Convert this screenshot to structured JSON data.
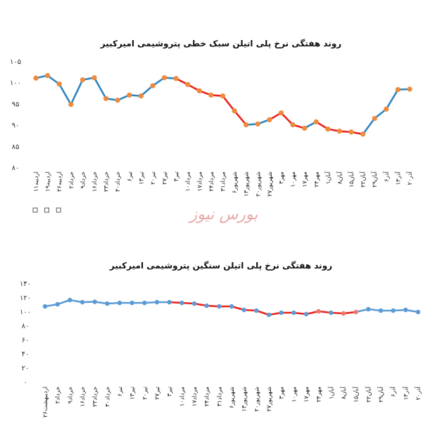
{
  "watermark": "بورس نیوز",
  "chart_data": [
    {
      "type": "line",
      "title": "روند هفتگی نرخ پلی اتیلن سبک خطی پتروشیمی امیرکبیر",
      "ylim": [
        80,
        105
      ],
      "yticks": [
        80,
        85,
        90,
        95,
        100,
        105
      ],
      "grid": false,
      "categories": [
        "۱۱اردیبه",
        "۱۹اردیبه",
        "۲۶اردیبه",
        "۲خرداد",
        "۹خرداد",
        "۱۶خرداد",
        "۲۳خرداد",
        "۳۰خرداد",
        "۶تیر",
        "۱۳تیر",
        "۲۰تیر",
        "۲۷تیر",
        "۳تیر",
        "۱۰مرداد",
        "۱۷مرداد",
        "۲۴مرداد",
        "۳۱مرداد",
        "۶شهریور",
        "۱۳شهریور",
        "۲۰شهریور",
        "۲۷شهریور",
        "۳مهر",
        "۱۰مهر",
        "۱۷مهر",
        "۲۴مهر",
        "۱آبان",
        "۸آبان",
        "۱۵آبان",
        "۲۲آبان",
        "۲۹آبان",
        "۶آذر",
        "۱۳آذر",
        "۲۰آذر"
      ],
      "values": [
        101.0,
        101.6,
        99.6,
        94.8,
        100.6,
        101.1,
        96.2,
        95.8,
        97.0,
        96.8,
        99.2,
        101.1,
        100.9,
        99.5,
        98.0,
        97.0,
        96.8,
        93.3,
        90.0,
        90.2,
        91.2,
        92.8,
        90.0,
        89.2,
        90.7,
        89.0,
        88.5,
        88.3,
        87.8,
        91.5,
        93.7,
        98.3,
        98.4
      ],
      "segment_colors": [
        "#2e86c1",
        "#2e86c1",
        "#2e86c1",
        "#2e86c1",
        "#2e86c1",
        "#2e86c1",
        "#2e86c1",
        "#2e86c1",
        "#2e86c1",
        "#2e86c1",
        "#2e86c1",
        "#2e86c1",
        "#e8231c",
        "#e8231c",
        "#e8231c",
        "#e8231c",
        "#e8231c",
        "#e8231c",
        "#2e86c1",
        "#2e86c1",
        "#e8231c",
        "#e8231c",
        "#e8231c",
        "#2e86c1",
        "#e8231c",
        "#e8231c",
        "#e8231c",
        "#e8231c",
        "#2e86c1",
        "#2e86c1",
        "#2e86c1",
        "#2e86c1"
      ],
      "marker_color": "#ee8a3c",
      "legend_boxes_first_labels": 3
    },
    {
      "type": "line",
      "title": "روند هفتگی نرخ پلی اتیلن سنگین پتروشیمی امیرکبیر",
      "ylim": [
        0,
        140
      ],
      "yticks": [
        0,
        20,
        40,
        60,
        80,
        100,
        120,
        140
      ],
      "grid": false,
      "categories": [
        "۲۶اردیبهشت",
        "۲خرداد",
        "۹خرداد",
        "۱۶خرداد",
        "۲۳خرداد",
        "۳۰خرداد",
        "۶تیر",
        "۱۳تیر",
        "۲۰تیر",
        "۲۷تیر",
        "۳تیر",
        "۱۰مرداد",
        "۱۷مرداد",
        "۲۴مرداد",
        "۳۱مرداد",
        "۶شهریور",
        "۱۳شهریور",
        "۲۰شهریور",
        "۲۷شهریور",
        "۳مهر",
        "۱۰مهر",
        "۱۷مهر",
        "۲۴مهر",
        "۱آبان",
        "۸آبان",
        "۱۵آبان",
        "۲۲آبان",
        "۲۹آبان",
        "۶آذر",
        "۱۳آذر",
        "۲۰آذر"
      ],
      "values": [
        107,
        110,
        116,
        113,
        113.5,
        111,
        112,
        112,
        112,
        113,
        113,
        112,
        111,
        108,
        107,
        107,
        102,
        101,
        95,
        98,
        98,
        96,
        100,
        98,
        97,
        99,
        103,
        101,
        101,
        102,
        99
      ],
      "segment_colors": [
        "#5b9bd5",
        "#5b9bd5",
        "#5b9bd5",
        "#5b9bd5",
        "#5b9bd5",
        "#5b9bd5",
        "#5b9bd5",
        "#5b9bd5",
        "#5b9bd5",
        "#5b9bd5",
        "#e8231c",
        "#e8231c",
        "#e8231c",
        "#e8231c",
        "#e8231c",
        "#e8231c",
        "#e8231c",
        "#e8231c",
        "#e8231c",
        "#e8231c",
        "#e8231c",
        "#e8231c",
        "#e8231c",
        "#e8231c",
        "#e8231c",
        "#5b9bd5",
        "#5b9bd5",
        "#5b9bd5",
        "#5b9bd5",
        "#5b9bd5"
      ],
      "marker_color": "#5b9bd5",
      "marker_color_alt": "#e87a6c",
      "alt_marker_indices": [
        22,
        24,
        25
      ]
    }
  ]
}
